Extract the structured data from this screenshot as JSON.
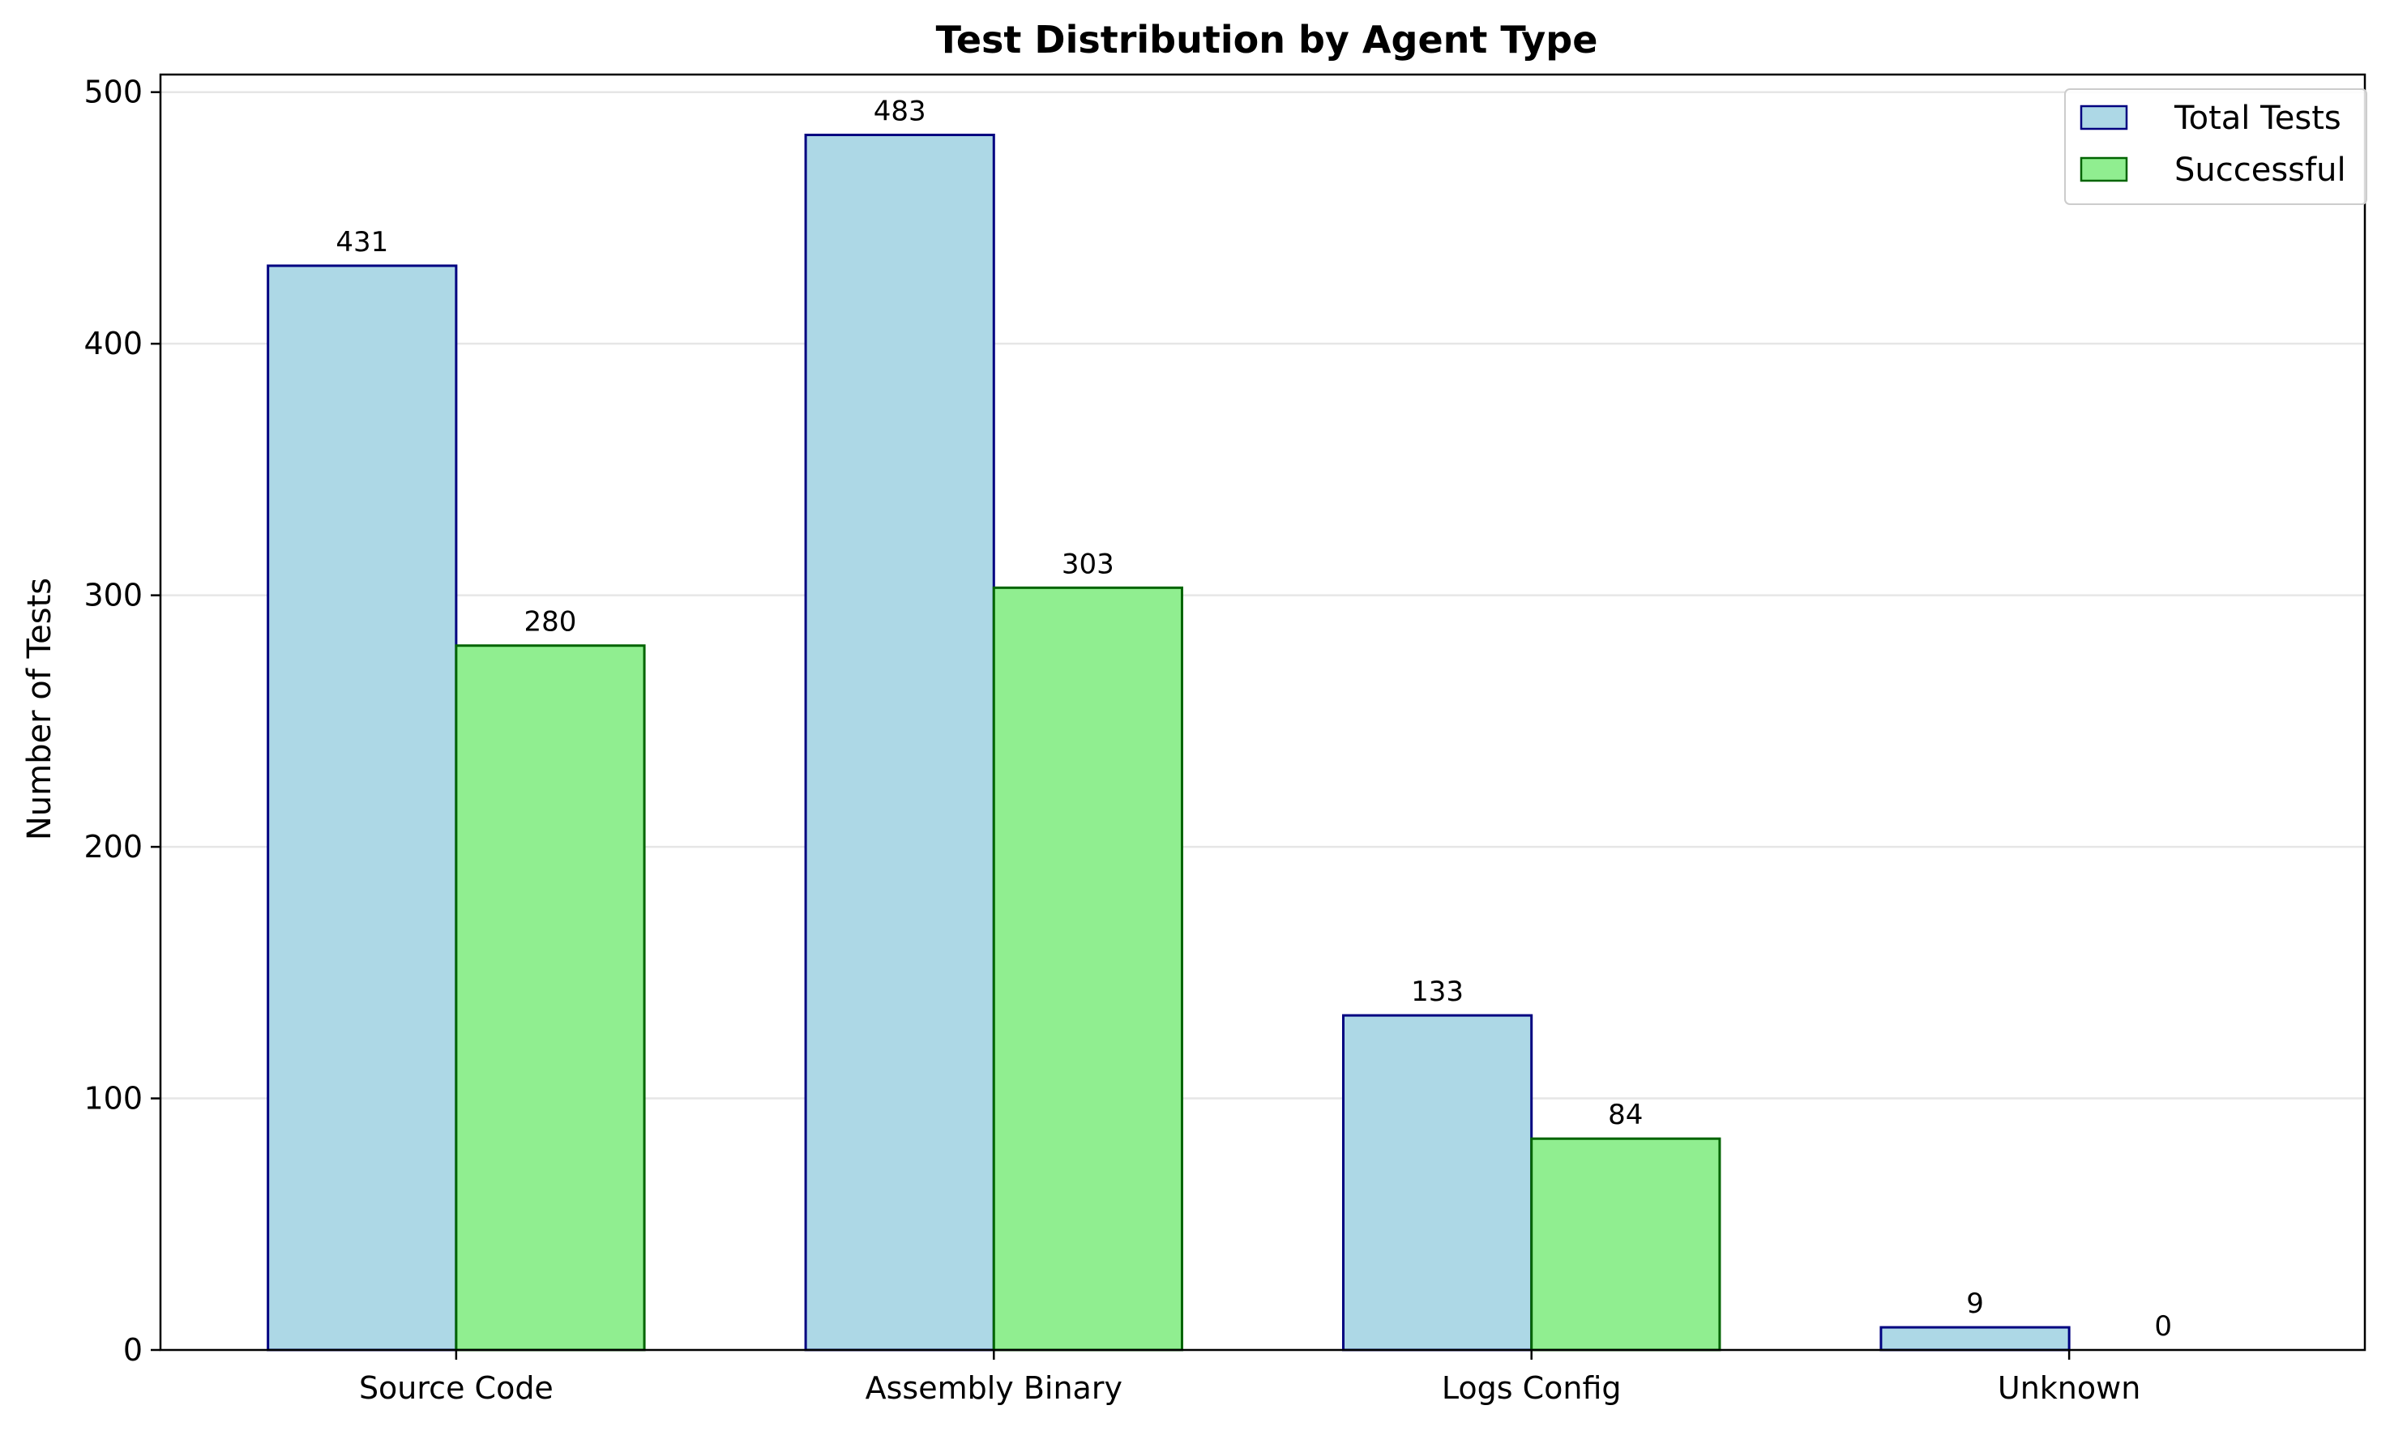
{
  "chart_data": {
    "type": "bar",
    "title": "Test Distribution by Agent Type",
    "xlabel": "",
    "ylabel": "Number of Tests",
    "categories": [
      "Source Code",
      "Assembly Binary",
      "Logs Config",
      "Unknown"
    ],
    "series": [
      {
        "name": "Total Tests",
        "values": [
          431,
          483,
          133,
          9
        ],
        "color": "#add8e6",
        "edge_color": "#000080"
      },
      {
        "name": "Successful",
        "values": [
          280,
          303,
          84,
          0
        ],
        "color": "#90ee90",
        "edge_color": "#006400"
      }
    ],
    "ylim": [
      0,
      507
    ],
    "yticks": [
      0,
      100,
      200,
      300,
      400,
      500
    ],
    "grid": "y-axis",
    "grid_color": "#e6e6e6",
    "legend_position": "top-right",
    "data_labels": true
  }
}
